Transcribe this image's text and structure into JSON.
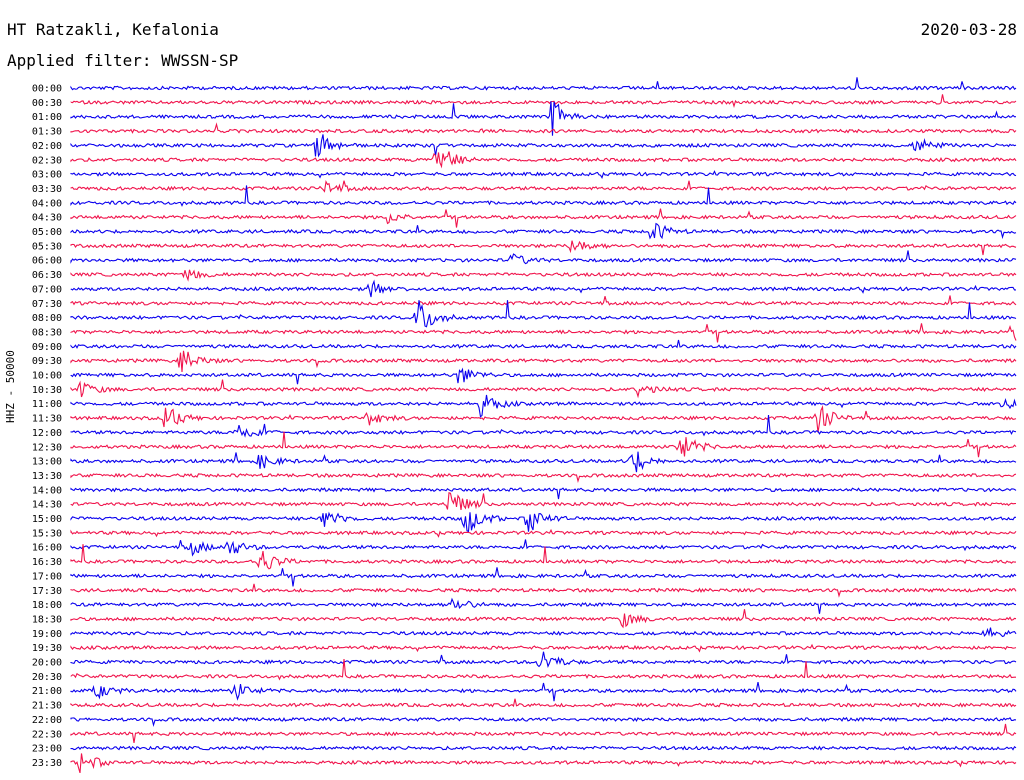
{
  "header": {
    "station": "HT Ratzakli, Kefalonia",
    "date": "2020-03-28",
    "filter_label": "Applied filter:",
    "filter_value": "WWSSN-SP",
    "channel": "HHZ - 50000"
  },
  "colors": {
    "odd_trace": "#0a00ee",
    "even_trace": "#f0144c",
    "text": "#000000",
    "background": "#ffffff"
  },
  "chart_data": {
    "type": "line",
    "title": "HT Ratzakli, Kefalonia",
    "subtitle": "Applied filter: WWSSN-SP",
    "ylabel": "HHZ - 50000",
    "xlabel": "",
    "grid": false,
    "legend": "none",
    "minutes_per_line": 30,
    "categories": [
      "00:00",
      "00:30",
      "01:00",
      "01:30",
      "02:00",
      "02:30",
      "03:00",
      "03:30",
      "04:00",
      "04:30",
      "05:00",
      "05:30",
      "06:00",
      "06:30",
      "07:00",
      "07:30",
      "08:00",
      "08:30",
      "09:00",
      "09:30",
      "10:00",
      "10:30",
      "11:00",
      "11:30",
      "12:00",
      "12:30",
      "13:00",
      "13:30",
      "14:00",
      "14:30",
      "15:00",
      "15:30",
      "16:00",
      "16:30",
      "17:00",
      "17:30",
      "18:00",
      "18:30",
      "19:00",
      "19:30",
      "20:00",
      "20:30",
      "21:00",
      "21:30",
      "22:00",
      "22:30",
      "23:00",
      "23:30"
    ],
    "events": [
      {
        "line": "01:00",
        "minute": 15.2,
        "strength": 0.9
      },
      {
        "line": "02:00",
        "minute": 7.8,
        "strength": 0.6
      },
      {
        "line": "02:00",
        "minute": 26.8,
        "strength": 0.35
      },
      {
        "line": "02:30",
        "minute": 11.6,
        "strength": 0.75
      },
      {
        "line": "03:30",
        "minute": 8.0,
        "strength": 0.3
      },
      {
        "line": "04:30",
        "minute": 10.0,
        "strength": 0.25
      },
      {
        "line": "05:00",
        "minute": 18.4,
        "strength": 0.45
      },
      {
        "line": "05:30",
        "minute": 15.9,
        "strength": 0.3
      },
      {
        "line": "06:00",
        "minute": 14.0,
        "strength": 0.25
      },
      {
        "line": "06:30",
        "minute": 3.6,
        "strength": 0.3
      },
      {
        "line": "07:00",
        "minute": 9.5,
        "strength": 0.3
      },
      {
        "line": "08:00",
        "minute": 11.0,
        "strength": 0.8
      },
      {
        "line": "08:30",
        "minute": 30.0,
        "strength": 0.4
      },
      {
        "line": "09:30",
        "minute": 3.5,
        "strength": 0.5
      },
      {
        "line": "10:00",
        "minute": 12.3,
        "strength": 0.4
      },
      {
        "line": "10:30",
        "minute": 0.3,
        "strength": 0.3
      },
      {
        "line": "10:30",
        "minute": 18.0,
        "strength": 0.3
      },
      {
        "line": "11:00",
        "minute": 13.0,
        "strength": 0.5
      },
      {
        "line": "11:00",
        "minute": 29.5,
        "strength": 0.3
      },
      {
        "line": "11:30",
        "minute": 3.0,
        "strength": 0.5
      },
      {
        "line": "11:30",
        "minute": 9.4,
        "strength": 0.3
      },
      {
        "line": "11:30",
        "minute": 23.7,
        "strength": 0.55
      },
      {
        "line": "12:00",
        "minute": 5.3,
        "strength": 0.4
      },
      {
        "line": "12:30",
        "minute": 19.3,
        "strength": 0.6
      },
      {
        "line": "13:00",
        "minute": 6.0,
        "strength": 0.3
      },
      {
        "line": "13:00",
        "minute": 17.8,
        "strength": 0.55
      },
      {
        "line": "14:30",
        "minute": 12.0,
        "strength": 0.65
      },
      {
        "line": "15:00",
        "minute": 8.0,
        "strength": 0.45
      },
      {
        "line": "15:00",
        "minute": 12.5,
        "strength": 0.7
      },
      {
        "line": "15:00",
        "minute": 14.5,
        "strength": 0.6
      },
      {
        "line": "16:00",
        "minute": 3.8,
        "strength": 0.3
      },
      {
        "line": "16:00",
        "minute": 5.0,
        "strength": 0.35
      },
      {
        "line": "16:30",
        "minute": 6.0,
        "strength": 0.55
      },
      {
        "line": "18:00",
        "minute": 12.1,
        "strength": 0.3
      },
      {
        "line": "18:30",
        "minute": 17.5,
        "strength": 0.3
      },
      {
        "line": "19:00",
        "minute": 29.0,
        "strength": 0.25
      },
      {
        "line": "20:00",
        "minute": 14.9,
        "strength": 0.5
      },
      {
        "line": "21:00",
        "minute": 0.8,
        "strength": 0.3
      },
      {
        "line": "21:00",
        "minute": 5.2,
        "strength": 0.35
      },
      {
        "line": "23:30",
        "minute": 0.3,
        "strength": 0.45
      }
    ]
  }
}
